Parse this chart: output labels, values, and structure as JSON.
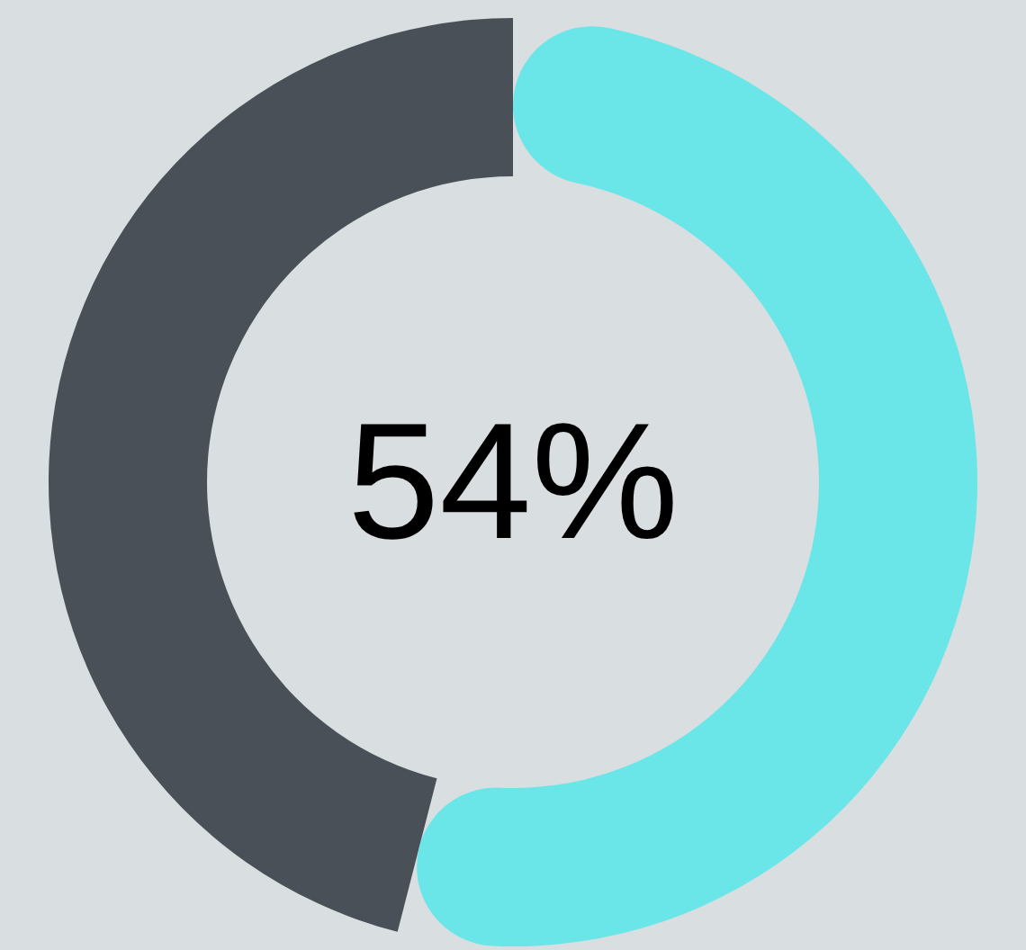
{
  "chart_data": {
    "type": "donut",
    "categories": [
      null,
      null
    ],
    "values": [
      54,
      46
    ],
    "colors": [
      "#6ae6e8",
      "#4a5058"
    ],
    "annotations": [
      "54%"
    ]
  }
}
